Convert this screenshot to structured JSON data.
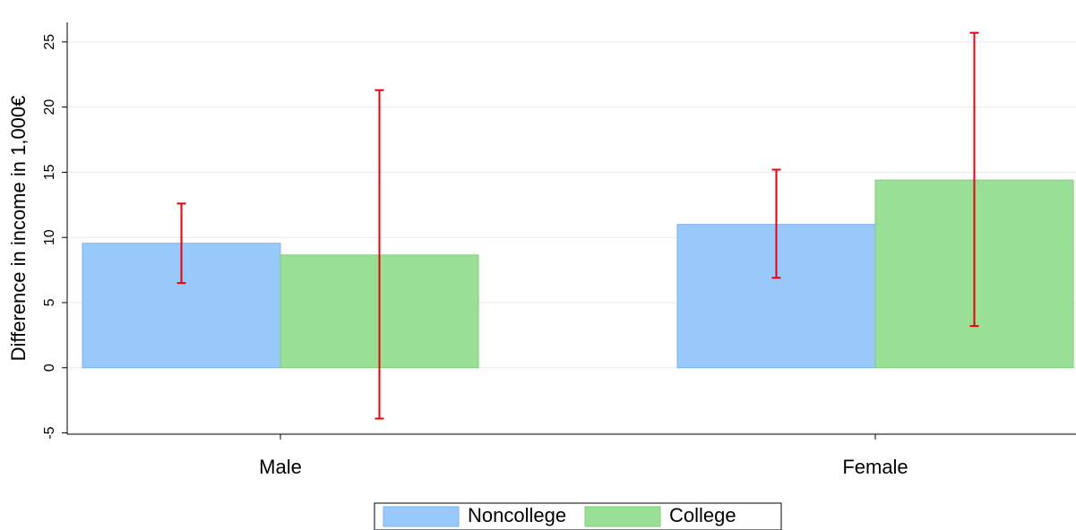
{
  "chart_data": {
    "type": "bar",
    "y_label": "Difference in income in 1,000€",
    "categories": [
      "Male",
      "Female"
    ],
    "series": [
      {
        "name": "Noncollege",
        "color": "#99c9fa",
        "values": [
          9.55,
          11.0
        ],
        "lower": [
          6.5,
          6.9
        ],
        "upper": [
          12.6,
          15.2
        ]
      },
      {
        "name": "College",
        "color": "#99df95",
        "values": [
          8.65,
          14.4
        ],
        "lower": [
          -3.9,
          3.2
        ],
        "upper": [
          21.3,
          25.7
        ]
      }
    ],
    "error_color": "#e8000b",
    "ylim": [
      -5.1,
      26.5
    ],
    "yticks": [
      -5,
      0,
      5,
      10,
      15,
      20,
      25
    ],
    "grid": true,
    "legend": "bottom"
  }
}
